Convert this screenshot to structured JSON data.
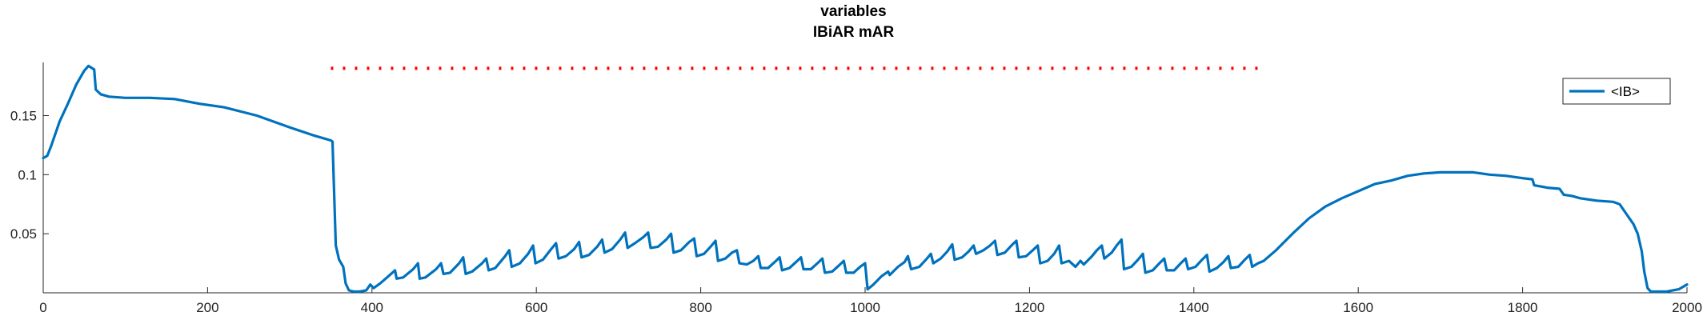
{
  "chart_data": {
    "type": "line",
    "title_lines": [
      "variables",
      "IBiAR mAR"
    ],
    "xlabel": "",
    "ylabel": "",
    "xlim": [
      0,
      2000
    ],
    "ylim": [
      0,
      0.195
    ],
    "x_ticks": [
      0,
      200,
      400,
      600,
      800,
      1000,
      1200,
      1400,
      1600,
      1800,
      2000
    ],
    "y_ticks": [
      0.05,
      0.1,
      0.15
    ],
    "y_tick_labels": [
      "0.05",
      "0.1",
      "0.15"
    ],
    "grid": false,
    "legend": {
      "position": "top-right",
      "entries": [
        "<IB>"
      ]
    },
    "series": [
      {
        "name": "<IB>",
        "color": "#0072BD",
        "points": [
          [
            0,
            0.114
          ],
          [
            5,
            0.116
          ],
          [
            10,
            0.125
          ],
          [
            20,
            0.145
          ],
          [
            30,
            0.16
          ],
          [
            40,
            0.176
          ],
          [
            50,
            0.188
          ],
          [
            55,
            0.192
          ],
          [
            62,
            0.189
          ],
          [
            64,
            0.172
          ],
          [
            70,
            0.168
          ],
          [
            80,
            0.166
          ],
          [
            100,
            0.165
          ],
          [
            130,
            0.165
          ],
          [
            160,
            0.164
          ],
          [
            190,
            0.16
          ],
          [
            220,
            0.157
          ],
          [
            260,
            0.15
          ],
          [
            300,
            0.14
          ],
          [
            330,
            0.133
          ],
          [
            350,
            0.129
          ],
          [
            352,
            0.128
          ],
          [
            356,
            0.04
          ],
          [
            360,
            0.028
          ],
          [
            365,
            0.022
          ],
          [
            368,
            0.008
          ],
          [
            372,
            0.002
          ],
          [
            378,
            0.001
          ],
          [
            385,
            0.001
          ],
          [
            393,
            0.002
          ],
          [
            398,
            0.007
          ],
          [
            402,
            0.004
          ],
          [
            410,
            0.008
          ],
          [
            420,
            0.014
          ],
          [
            428,
            0.019
          ],
          [
            430,
            0.012
          ],
          [
            438,
            0.013
          ],
          [
            450,
            0.02
          ],
          [
            456,
            0.025
          ],
          [
            458,
            0.012
          ],
          [
            465,
            0.013
          ],
          [
            478,
            0.02
          ],
          [
            484,
            0.025
          ],
          [
            487,
            0.016
          ],
          [
            495,
            0.017
          ],
          [
            506,
            0.025
          ],
          [
            511,
            0.03
          ],
          [
            514,
            0.016
          ],
          [
            522,
            0.018
          ],
          [
            534,
            0.025
          ],
          [
            539,
            0.029
          ],
          [
            542,
            0.019
          ],
          [
            550,
            0.021
          ],
          [
            562,
            0.031
          ],
          [
            567,
            0.036
          ],
          [
            570,
            0.022
          ],
          [
            580,
            0.025
          ],
          [
            590,
            0.033
          ],
          [
            596,
            0.04
          ],
          [
            599,
            0.025
          ],
          [
            608,
            0.028
          ],
          [
            618,
            0.037
          ],
          [
            624,
            0.042
          ],
          [
            627,
            0.029
          ],
          [
            636,
            0.031
          ],
          [
            646,
            0.037
          ],
          [
            652,
            0.043
          ],
          [
            655,
            0.03
          ],
          [
            664,
            0.032
          ],
          [
            674,
            0.039
          ],
          [
            680,
            0.045
          ],
          [
            683,
            0.034
          ],
          [
            692,
            0.037
          ],
          [
            702,
            0.045
          ],
          [
            708,
            0.051
          ],
          [
            711,
            0.038
          ],
          [
            720,
            0.042
          ],
          [
            730,
            0.047
          ],
          [
            736,
            0.051
          ],
          [
            739,
            0.038
          ],
          [
            748,
            0.039
          ],
          [
            758,
            0.045
          ],
          [
            764,
            0.05
          ],
          [
            767,
            0.034
          ],
          [
            776,
            0.036
          ],
          [
            786,
            0.043
          ],
          [
            792,
            0.046
          ],
          [
            795,
            0.031
          ],
          [
            804,
            0.033
          ],
          [
            812,
            0.039
          ],
          [
            818,
            0.044
          ],
          [
            821,
            0.027
          ],
          [
            830,
            0.029
          ],
          [
            838,
            0.034
          ],
          [
            844,
            0.036
          ],
          [
            847,
            0.025
          ],
          [
            856,
            0.024
          ],
          [
            864,
            0.027
          ],
          [
            870,
            0.031
          ],
          [
            873,
            0.021
          ],
          [
            882,
            0.021
          ],
          [
            890,
            0.026
          ],
          [
            896,
            0.03
          ],
          [
            899,
            0.019
          ],
          [
            908,
            0.021
          ],
          [
            916,
            0.026
          ],
          [
            922,
            0.03
          ],
          [
            925,
            0.02
          ],
          [
            934,
            0.02
          ],
          [
            942,
            0.025
          ],
          [
            948,
            0.029
          ],
          [
            951,
            0.017
          ],
          [
            960,
            0.018
          ],
          [
            968,
            0.023
          ],
          [
            974,
            0.027
          ],
          [
            977,
            0.017
          ],
          [
            986,
            0.017
          ],
          [
            994,
            0.022
          ],
          [
            1000,
            0.025
          ],
          [
            1003,
            0.003
          ],
          [
            1010,
            0.007
          ],
          [
            1020,
            0.014
          ],
          [
            1028,
            0.018
          ],
          [
            1030,
            0.015
          ],
          [
            1040,
            0.022
          ],
          [
            1048,
            0.026
          ],
          [
            1052,
            0.031
          ],
          [
            1056,
            0.02
          ],
          [
            1066,
            0.022
          ],
          [
            1074,
            0.028
          ],
          [
            1080,
            0.033
          ],
          [
            1083,
            0.025
          ],
          [
            1092,
            0.029
          ],
          [
            1100,
            0.035
          ],
          [
            1106,
            0.041
          ],
          [
            1109,
            0.028
          ],
          [
            1118,
            0.03
          ],
          [
            1126,
            0.035
          ],
          [
            1132,
            0.04
          ],
          [
            1135,
            0.033
          ],
          [
            1144,
            0.036
          ],
          [
            1152,
            0.04
          ],
          [
            1158,
            0.044
          ],
          [
            1161,
            0.032
          ],
          [
            1170,
            0.034
          ],
          [
            1178,
            0.04
          ],
          [
            1184,
            0.044
          ],
          [
            1187,
            0.03
          ],
          [
            1196,
            0.031
          ],
          [
            1204,
            0.036
          ],
          [
            1210,
            0.04
          ],
          [
            1213,
            0.025
          ],
          [
            1222,
            0.027
          ],
          [
            1230,
            0.033
          ],
          [
            1236,
            0.04
          ],
          [
            1239,
            0.025
          ],
          [
            1248,
            0.027
          ],
          [
            1256,
            0.022
          ],
          [
            1262,
            0.027
          ],
          [
            1266,
            0.024
          ],
          [
            1276,
            0.031
          ],
          [
            1282,
            0.036
          ],
          [
            1288,
            0.04
          ],
          [
            1291,
            0.029
          ],
          [
            1300,
            0.034
          ],
          [
            1306,
            0.04
          ],
          [
            1312,
            0.045
          ],
          [
            1315,
            0.02
          ],
          [
            1324,
            0.022
          ],
          [
            1332,
            0.028
          ],
          [
            1338,
            0.033
          ],
          [
            1341,
            0.017
          ],
          [
            1350,
            0.019
          ],
          [
            1358,
            0.025
          ],
          [
            1364,
            0.029
          ],
          [
            1367,
            0.019
          ],
          [
            1376,
            0.019
          ],
          [
            1384,
            0.025
          ],
          [
            1390,
            0.029
          ],
          [
            1393,
            0.02
          ],
          [
            1402,
            0.022
          ],
          [
            1410,
            0.028
          ],
          [
            1416,
            0.032
          ],
          [
            1419,
            0.018
          ],
          [
            1428,
            0.021
          ],
          [
            1436,
            0.026
          ],
          [
            1442,
            0.031
          ],
          [
            1445,
            0.021
          ],
          [
            1454,
            0.022
          ],
          [
            1462,
            0.028
          ],
          [
            1468,
            0.032
          ],
          [
            1471,
            0.022
          ],
          [
            1478,
            0.025
          ],
          [
            1485,
            0.027
          ],
          [
            1500,
            0.036
          ],
          [
            1520,
            0.05
          ],
          [
            1540,
            0.063
          ],
          [
            1560,
            0.073
          ],
          [
            1580,
            0.08
          ],
          [
            1600,
            0.086
          ],
          [
            1620,
            0.092
          ],
          [
            1640,
            0.095
          ],
          [
            1660,
            0.099
          ],
          [
            1680,
            0.101
          ],
          [
            1700,
            0.102
          ],
          [
            1720,
            0.102
          ],
          [
            1740,
            0.102
          ],
          [
            1760,
            0.1
          ],
          [
            1780,
            0.099
          ],
          [
            1800,
            0.097
          ],
          [
            1812,
            0.096
          ],
          [
            1814,
            0.091
          ],
          [
            1830,
            0.089
          ],
          [
            1845,
            0.088
          ],
          [
            1850,
            0.083
          ],
          [
            1860,
            0.082
          ],
          [
            1870,
            0.08
          ],
          [
            1890,
            0.078
          ],
          [
            1910,
            0.077
          ],
          [
            1918,
            0.075
          ],
          [
            1925,
            0.068
          ],
          [
            1935,
            0.058
          ],
          [
            1940,
            0.05
          ],
          [
            1945,
            0.035
          ],
          [
            1948,
            0.018
          ],
          [
            1952,
            0.004
          ],
          [
            1956,
            0.001
          ],
          [
            1965,
            0.001
          ],
          [
            1975,
            0.001
          ],
          [
            1990,
            0.003
          ],
          [
            2000,
            0.007
          ]
        ]
      },
      {
        "name": "",
        "style": "dotted",
        "color": "#FF0000",
        "y": 0.19,
        "xrange": [
          350,
          1480
        ]
      }
    ]
  }
}
